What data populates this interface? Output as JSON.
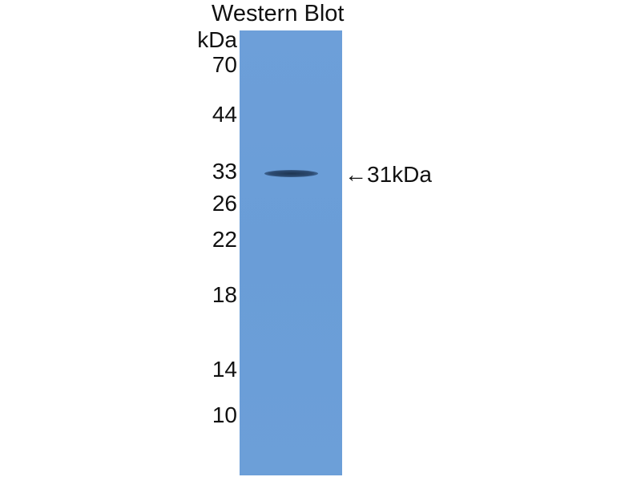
{
  "title": "Western Blot",
  "unit_label": "kDa",
  "markers": [
    "70",
    "44",
    "33",
    "26",
    "22",
    "18",
    "14",
    "10"
  ],
  "band_annotation": "←31kDa",
  "colors": {
    "membrane": "#6b9ed8",
    "band": "#243f62",
    "text": "#111111"
  }
}
